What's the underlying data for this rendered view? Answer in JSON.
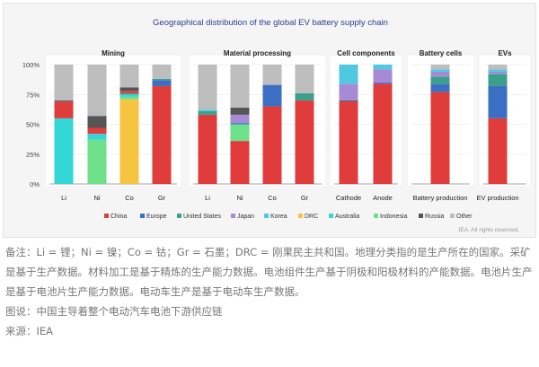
{
  "chart_data": {
    "type": "bar",
    "stacked": true,
    "title": "Geographical distribution of the global EV battery supply chain",
    "y_ticks": [
      "0%",
      "25%",
      "50%",
      "75%",
      "100%"
    ],
    "ylim": [
      0,
      100
    ],
    "source_note": "IEA. All rights reserved.",
    "legend_position": "bottom",
    "legend": [
      {
        "name": "China",
        "color": "#e03c3c"
      },
      {
        "name": "Europe",
        "color": "#3a6fc4"
      },
      {
        "name": "United States",
        "color": "#3aa08c"
      },
      {
        "name": "Japan",
        "color": "#a78ad6"
      },
      {
        "name": "Korea",
        "color": "#4fc9e0"
      },
      {
        "name": "DRC",
        "color": "#f5c542"
      },
      {
        "name": "Australia",
        "color": "#33d6d6"
      },
      {
        "name": "Indonesia",
        "color": "#6ee08a"
      },
      {
        "name": "Russia",
        "color": "#555555"
      },
      {
        "name": "Other",
        "color": "#bdbdbd"
      }
    ],
    "panels": [
      {
        "title": "Mining",
        "bars": [
          {
            "label": "Li",
            "segments": [
              {
                "series": "Australia",
                "value": 55
              },
              {
                "series": "China",
                "value": 14
              },
              {
                "series": "Russia",
                "value": 1
              },
              {
                "series": "Other",
                "value": 30
              }
            ]
          },
          {
            "label": "Ni",
            "segments": [
              {
                "series": "Indonesia",
                "value": 37
              },
              {
                "series": "Australia",
                "value": 5
              },
              {
                "series": "China",
                "value": 5
              },
              {
                "series": "Russia",
                "value": 10
              },
              {
                "series": "Other",
                "value": 43
              }
            ]
          },
          {
            "label": "Co",
            "segments": [
              {
                "series": "DRC",
                "value": 71
              },
              {
                "series": "Indonesia",
                "value": 2
              },
              {
                "series": "Australia",
                "value": 2
              },
              {
                "series": "United States",
                "value": 1
              },
              {
                "series": "China",
                "value": 2
              },
              {
                "series": "Russia",
                "value": 3
              },
              {
                "series": "Other",
                "value": 19
              }
            ]
          },
          {
            "label": "Gr",
            "segments": [
              {
                "series": "China",
                "value": 82
              },
              {
                "series": "Europe",
                "value": 5
              },
              {
                "series": "United States",
                "value": 1
              },
              {
                "series": "Other",
                "value": 12
              }
            ]
          }
        ]
      },
      {
        "title": "Material processing",
        "bars": [
          {
            "label": "Li",
            "segments": [
              {
                "series": "China",
                "value": 58
              },
              {
                "series": "United States",
                "value": 3
              },
              {
                "series": "Australia",
                "value": 1
              },
              {
                "series": "Other",
                "value": 38
              }
            ]
          },
          {
            "label": "Ni",
            "segments": [
              {
                "series": "China",
                "value": 36
              },
              {
                "series": "Indonesia",
                "value": 14
              },
              {
                "series": "Europe",
                "value": 1
              },
              {
                "series": "Japan",
                "value": 7
              },
              {
                "series": "Russia",
                "value": 6
              },
              {
                "series": "Other",
                "value": 36
              }
            ]
          },
          {
            "label": "Co",
            "segments": [
              {
                "series": "China",
                "value": 65
              },
              {
                "series": "Europe",
                "value": 18
              },
              {
                "series": "Other",
                "value": 17
              }
            ]
          },
          {
            "label": "Gr",
            "segments": [
              {
                "series": "China",
                "value": 70
              },
              {
                "series": "United States",
                "value": 6
              },
              {
                "series": "Other",
                "value": 24
              }
            ]
          }
        ]
      },
      {
        "title": "Cell components",
        "bars": [
          {
            "label": "Cathode",
            "segments": [
              {
                "series": "China",
                "value": 69
              },
              {
                "series": "Russia",
                "value": 1
              },
              {
                "series": "Japan",
                "value": 14
              },
              {
                "series": "Korea",
                "value": 16
              }
            ]
          },
          {
            "label": "Anode",
            "segments": [
              {
                "series": "China",
                "value": 84
              },
              {
                "series": "Europe",
                "value": 1
              },
              {
                "series": "Japan",
                "value": 11
              },
              {
                "series": "Korea",
                "value": 4
              }
            ]
          }
        ]
      },
      {
        "title": "Battery cells",
        "bars": [
          {
            "label": "Battery production",
            "segments": [
              {
                "series": "China",
                "value": 77
              },
              {
                "series": "Europe",
                "value": 7
              },
              {
                "series": "United States",
                "value": 6
              },
              {
                "series": "Japan",
                "value": 4
              },
              {
                "series": "Korea",
                "value": 2
              },
              {
                "series": "Other",
                "value": 4
              }
            ]
          }
        ]
      },
      {
        "title": "EVs",
        "bars": [
          {
            "label": "EV production",
            "segments": [
              {
                "series": "China",
                "value": 55
              },
              {
                "series": "Europe",
                "value": 27
              },
              {
                "series": "United States",
                "value": 10
              },
              {
                "series": "Japan",
                "value": 2
              },
              {
                "series": "Korea",
                "value": 2
              },
              {
                "series": "Other",
                "value": 4
              }
            ]
          }
        ]
      }
    ]
  },
  "notes": {
    "line1": "备注：Li = 锂；Ni = 镍；Co = 钴；Gr = 石墨；DRC = 刚果民主共和国。地理分类指的是生产所在的国家。采矿是基于生产数据。材料加工是基于精炼的生产能力数据。电池组件生产基于阴极和阳极材料的产能数据。电池片生产是基于电池片生产能力数据。电动车生产是基于电动车生产数据。",
    "line2": "图说：中国主导着整个电动汽车电池下游供应链",
    "line3": "来源：IEA"
  }
}
